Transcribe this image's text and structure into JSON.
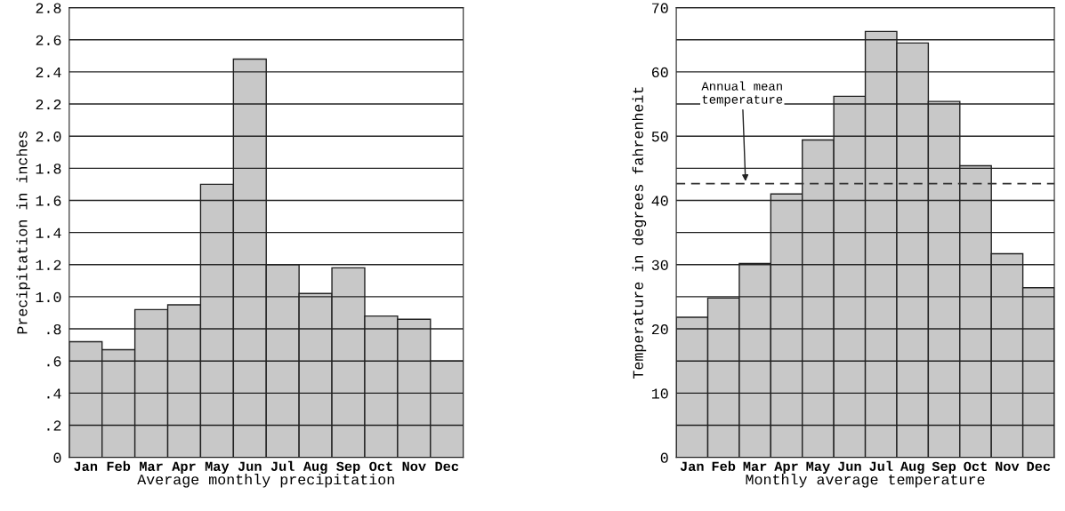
{
  "chart_data": [
    {
      "type": "bar",
      "xlabel": "Average monthly precipitation",
      "ylabel": "Precipitation in inches",
      "categories": [
        "Jan",
        "Feb",
        "Mar",
        "Apr",
        "May",
        "Jun",
        "Jul",
        "Aug",
        "Sep",
        "Oct",
        "Nov",
        "Dec"
      ],
      "values": [
        0.72,
        0.67,
        0.92,
        0.95,
        1.7,
        2.48,
        1.2,
        1.02,
        1.18,
        0.88,
        0.86,
        0.6
      ],
      "color": "#c8c8c8",
      "ylim": [
        0,
        2.8
      ],
      "yticks": [
        {
          "value": 0,
          "label": "0"
        },
        {
          "value": 0.2,
          "label": ".2"
        },
        {
          "value": 0.4,
          "label": ".4"
        },
        {
          "value": 0.6,
          "label": ".6"
        },
        {
          "value": 0.8,
          "label": ".8"
        },
        {
          "value": 1.0,
          "label": "1.0"
        },
        {
          "value": 1.2,
          "label": "1.2"
        },
        {
          "value": 1.4,
          "label": "1.4"
        },
        {
          "value": 1.6,
          "label": "1.6"
        },
        {
          "value": 1.8,
          "label": "1.8"
        },
        {
          "value": 2.0,
          "label": "2.0"
        },
        {
          "value": 2.2,
          "label": "2.2"
        },
        {
          "value": 2.4,
          "label": "2.4"
        },
        {
          "value": 2.6,
          "label": "2.6"
        },
        {
          "value": 2.8,
          "label": "2.8"
        }
      ],
      "grid": "y"
    },
    {
      "type": "bar",
      "xlabel": "Monthly average temperature",
      "ylabel": "Temperature in degrees fahrenheit",
      "categories": [
        "Jan",
        "Feb",
        "Mar",
        "Apr",
        "May",
        "Jun",
        "Jul",
        "Aug",
        "Sep",
        "Oct",
        "Nov",
        "Dec"
      ],
      "values": [
        21.8,
        24.8,
        30.2,
        41.0,
        49.4,
        56.2,
        66.3,
        64.5,
        55.4,
        45.4,
        31.7,
        26.4
      ],
      "color": "#c8c8c8",
      "ylim": [
        0,
        70
      ],
      "yticks": [
        0,
        {
          "value": 5,
          "label": null
        },
        10,
        {
          "value": 15,
          "label": null
        },
        20,
        {
          "value": 25,
          "label": null
        },
        30,
        {
          "value": 35,
          "label": null
        },
        40,
        {
          "value": 45,
          "label": null
        },
        50,
        {
          "value": 55,
          "label": null
        },
        60,
        {
          "value": 65,
          "label": null
        },
        70
      ],
      "grid": "y",
      "ref_lines": [
        {
          "axis": "y",
          "value": 42.6,
          "label": "Annual mean\ntemperature",
          "color": "#333333",
          "line_style": "dashed"
        }
      ]
    }
  ]
}
